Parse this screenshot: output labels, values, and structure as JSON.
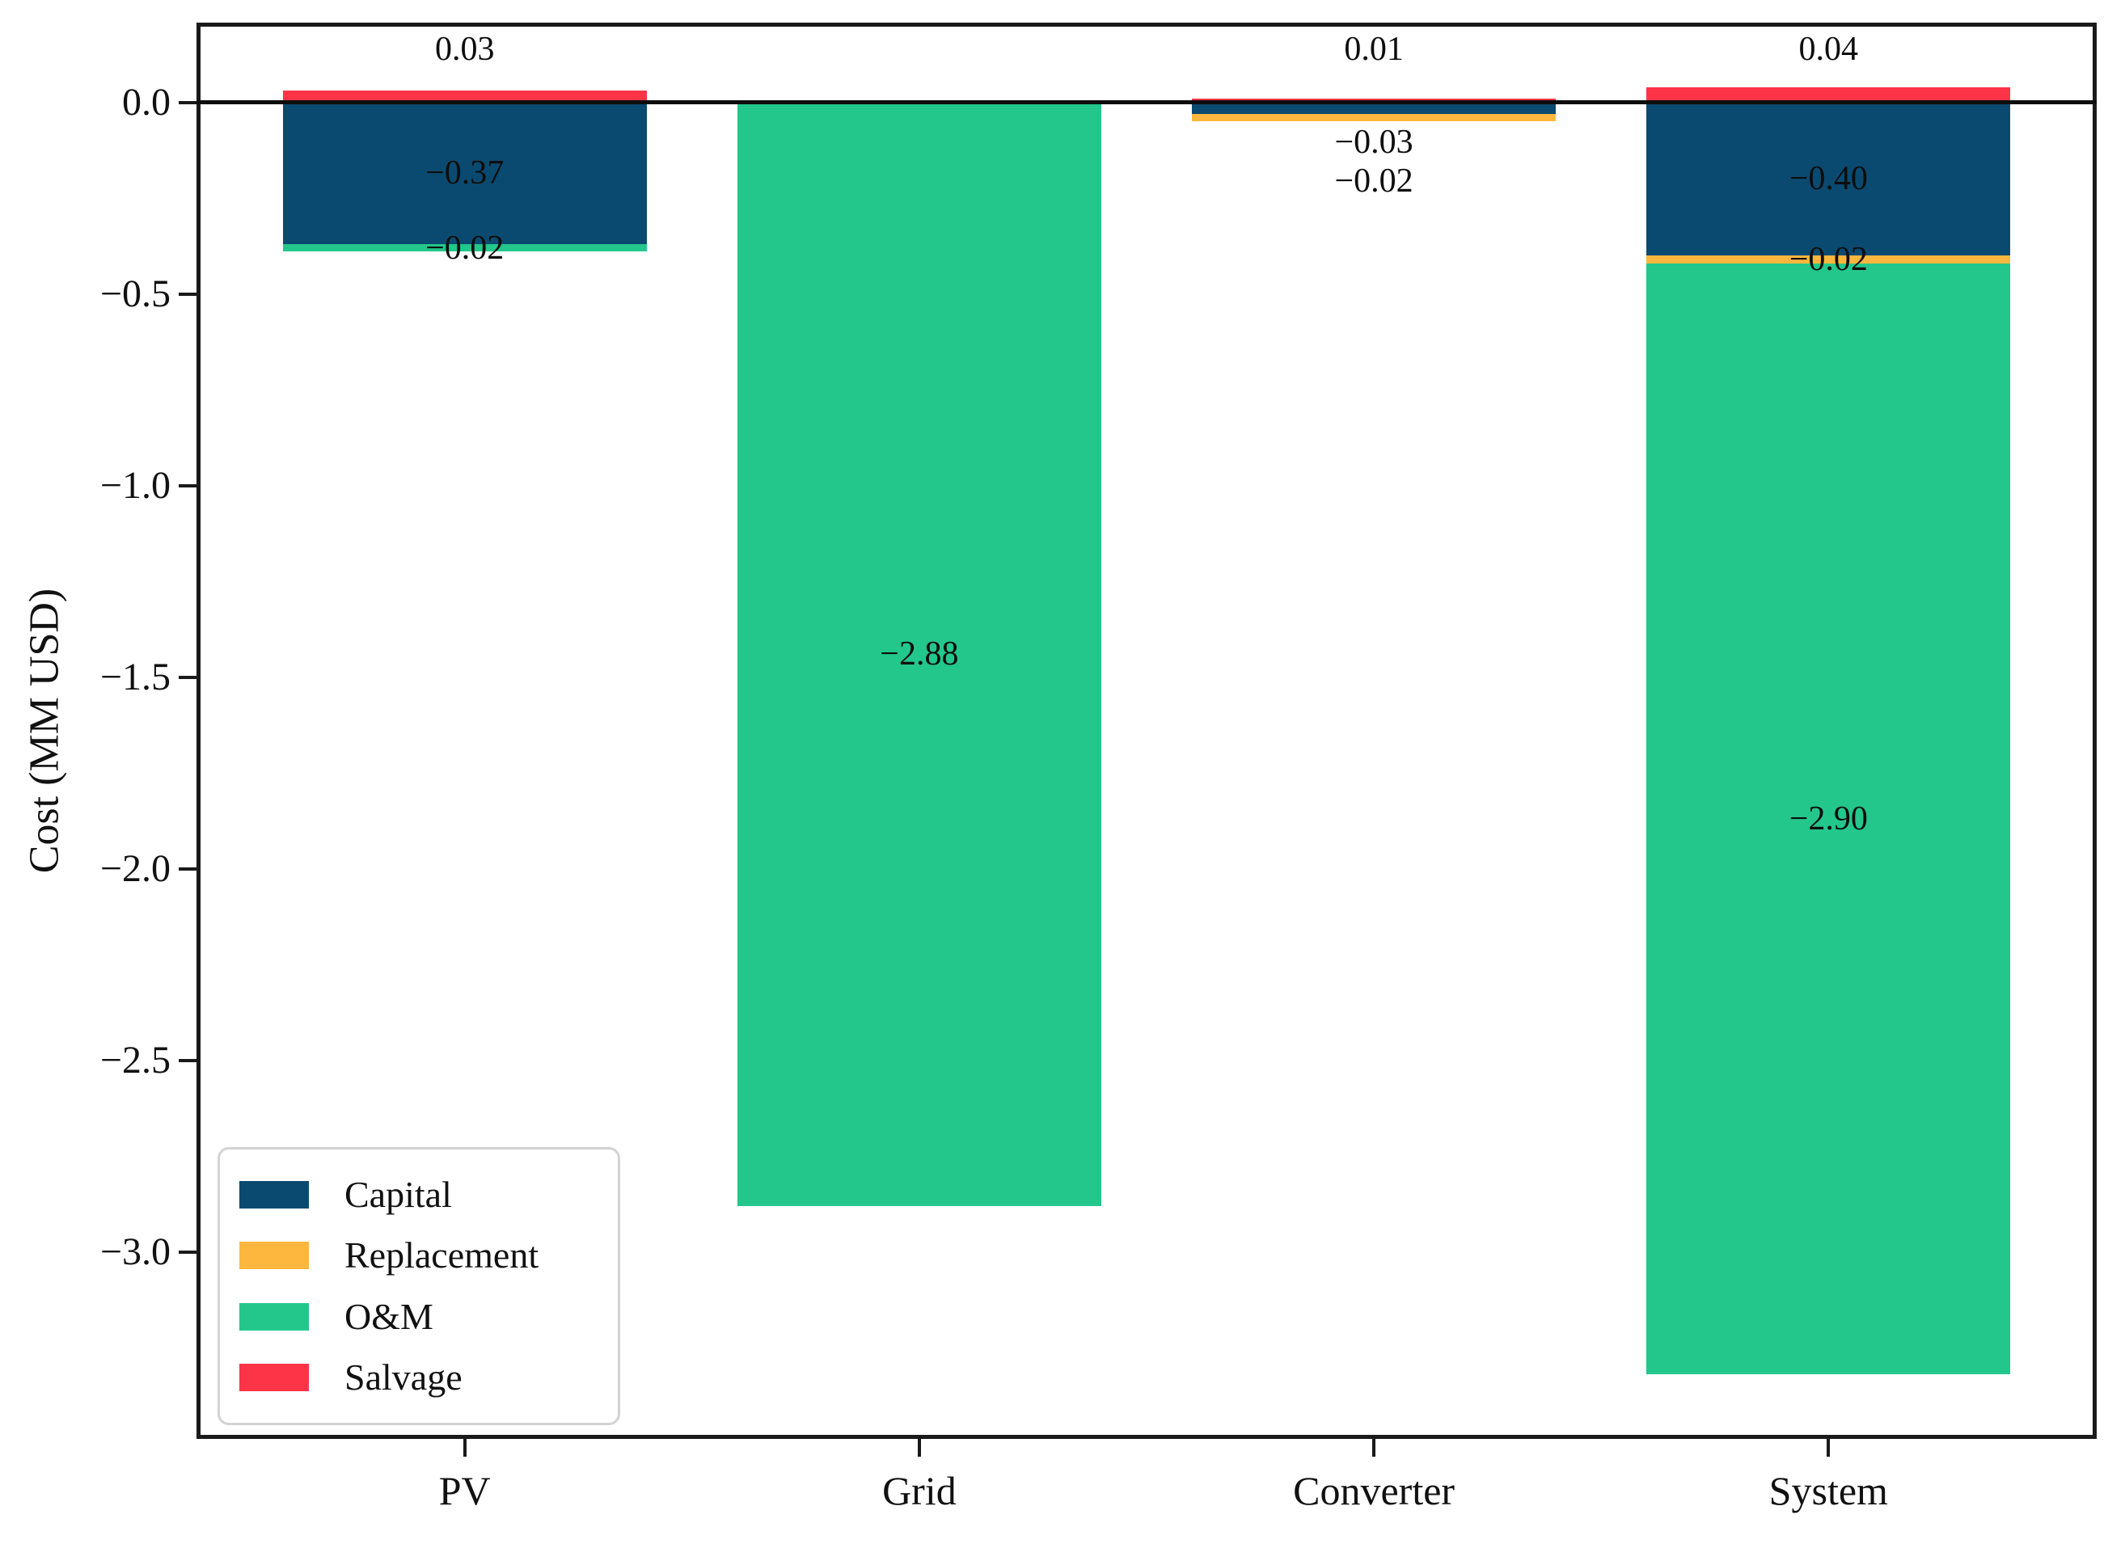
{
  "chart_data": {
    "type": "bar",
    "stacked": true,
    "title": "",
    "xlabel": "",
    "ylabel": "Cost (MM USD)",
    "categories": [
      "PV",
      "Grid",
      "Converter",
      "System"
    ],
    "series": [
      {
        "name": "Capital",
        "color": "#0b4a70",
        "values": [
          -0.37,
          0,
          -0.03,
          -0.4
        ]
      },
      {
        "name": "Replacement",
        "color": "#fdb73e",
        "values": [
          0,
          0,
          -0.02,
          -0.02
        ]
      },
      {
        "name": "O&M",
        "color": "#23c78c",
        "values": [
          -0.02,
          -2.88,
          0,
          -2.9
        ]
      },
      {
        "name": "Salvage",
        "color": "#fd3347",
        "values": [
          0.03,
          0,
          0.01,
          0.04
        ]
      }
    ],
    "value_labels": [
      {
        "category": "PV",
        "series": "Salvage",
        "text": "0.03",
        "placement": "above"
      },
      {
        "category": "PV",
        "series": "Capital",
        "text": "−0.37",
        "placement": "center"
      },
      {
        "category": "PV",
        "series": "O&M",
        "text": "−0.02",
        "placement": "center"
      },
      {
        "category": "Grid",
        "series": "O&M",
        "text": "−2.88",
        "placement": "center"
      },
      {
        "category": "Converter",
        "series": "Salvage",
        "text": "0.01",
        "placement": "above"
      },
      {
        "category": "Converter",
        "series": "Capital",
        "text": "−0.03",
        "placement": "below"
      },
      {
        "category": "Converter",
        "series": "Replacement",
        "text": "−0.02",
        "placement": "below"
      },
      {
        "category": "System",
        "series": "Salvage",
        "text": "0.04",
        "placement": "above"
      },
      {
        "category": "System",
        "series": "Capital",
        "text": "−0.40",
        "placement": "center"
      },
      {
        "category": "System",
        "series": "Replacement",
        "text": "−0.02",
        "placement": "center"
      },
      {
        "category": "System",
        "series": "O&M",
        "text": "−2.90",
        "placement": "center"
      }
    ],
    "yticks": [
      0.0,
      -0.5,
      -1.0,
      -1.5,
      -2.0,
      -2.5,
      -3.0
    ],
    "ytick_labels": [
      "0.0",
      "−0.5",
      "−1.0",
      "−1.5",
      "−2.0",
      "−2.5",
      "−3.0"
    ],
    "ylim": [
      -3.488,
      0.208
    ],
    "xlim": [
      -0.59,
      3.59
    ],
    "bar_width": 0.8,
    "grid": false,
    "zero_line": true,
    "legend": {
      "position": "lower left",
      "entries": [
        "Capital",
        "Replacement",
        "O&M",
        "Salvage"
      ]
    }
  }
}
